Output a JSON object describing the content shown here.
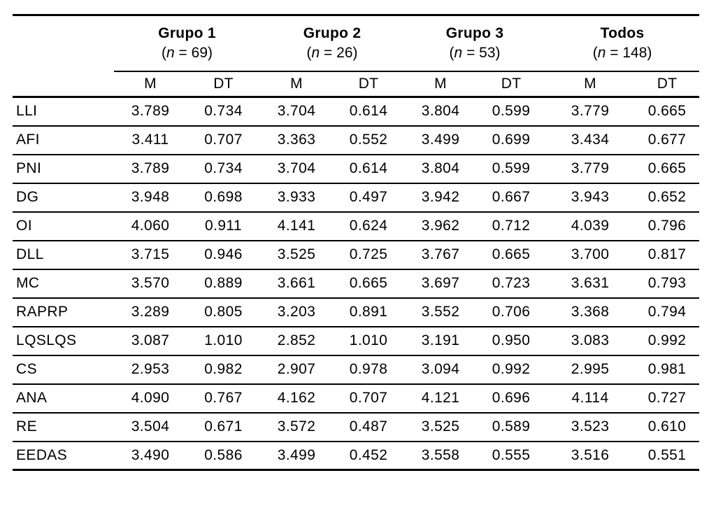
{
  "table": {
    "groups": [
      {
        "name": "Grupo 1",
        "open": "(",
        "n_var": "n",
        "n_rest": " = 69)"
      },
      {
        "name": "Grupo 2",
        "open": "(",
        "n_var": "n",
        "n_rest": " = 26)"
      },
      {
        "name": "Grupo 3",
        "open": "(",
        "n_var": "n",
        "n_rest": " = 53)"
      },
      {
        "name": "Todos",
        "open": "(",
        "n_var": "n",
        "n_rest": " = 148)"
      }
    ],
    "stat_headers": [
      "M",
      "DT",
      "M",
      "DT",
      "M",
      "DT",
      "M",
      "DT"
    ],
    "rows": [
      {
        "label": "LLI",
        "values": [
          "3.789",
          "0.734",
          "3.704",
          "0.614",
          "3.804",
          "0.599",
          "3.779",
          "0.665"
        ]
      },
      {
        "label": "AFI",
        "values": [
          "3.411",
          "0.707",
          "3.363",
          "0.552",
          "3.499",
          "0.699",
          "3.434",
          "0.677"
        ]
      },
      {
        "label": "PNI",
        "values": [
          "3.789",
          "0.734",
          "3.704",
          "0.614",
          "3.804",
          "0.599",
          "3.779",
          "0.665"
        ]
      },
      {
        "label": "DG",
        "values": [
          "3.948",
          "0.698",
          "3.933",
          "0.497",
          "3.942",
          "0.667",
          "3.943",
          "0.652"
        ]
      },
      {
        "label": "OI",
        "values": [
          "4.060",
          "0.911",
          "4.141",
          "0.624",
          "3.962",
          "0.712",
          "4.039",
          "0.796"
        ]
      },
      {
        "label": "DLL",
        "values": [
          "3.715",
          "0.946",
          "3.525",
          "0.725",
          "3.767",
          "0.665",
          "3.700",
          "0.817"
        ]
      },
      {
        "label": "MC",
        "values": [
          "3.570",
          "0.889",
          "3.661",
          "0.665",
          "3.697",
          "0.723",
          "3.631",
          "0.793"
        ]
      },
      {
        "label": "RAPRP",
        "values": [
          "3.289",
          "0.805",
          "3.203",
          "0.891",
          "3.552",
          "0.706",
          "3.368",
          "0.794"
        ]
      },
      {
        "label": "LQSLQS",
        "values": [
          "3.087",
          "1.010",
          "2.852",
          "1.010",
          "3.191",
          "0.950",
          "3.083",
          "0.992"
        ]
      },
      {
        "label": "CS",
        "values": [
          "2.953",
          "0.982",
          "2.907",
          "0.978",
          "3.094",
          "0.992",
          "2.995",
          "0.981"
        ]
      },
      {
        "label": "ANA",
        "values": [
          "4.090",
          "0.767",
          "4.162",
          "0.707",
          "4.121",
          "0.696",
          "4.114",
          "0.727"
        ]
      },
      {
        "label": "RE",
        "values": [
          "3.504",
          "0.671",
          "3.572",
          "0.487",
          "3.525",
          "0.589",
          "3.523",
          "0.610"
        ]
      },
      {
        "label": "EEDAS",
        "values": [
          "3.490",
          "0.586",
          "3.499",
          "0.452",
          "3.558",
          "0.555",
          "3.516",
          "0.551"
        ]
      }
    ]
  }
}
